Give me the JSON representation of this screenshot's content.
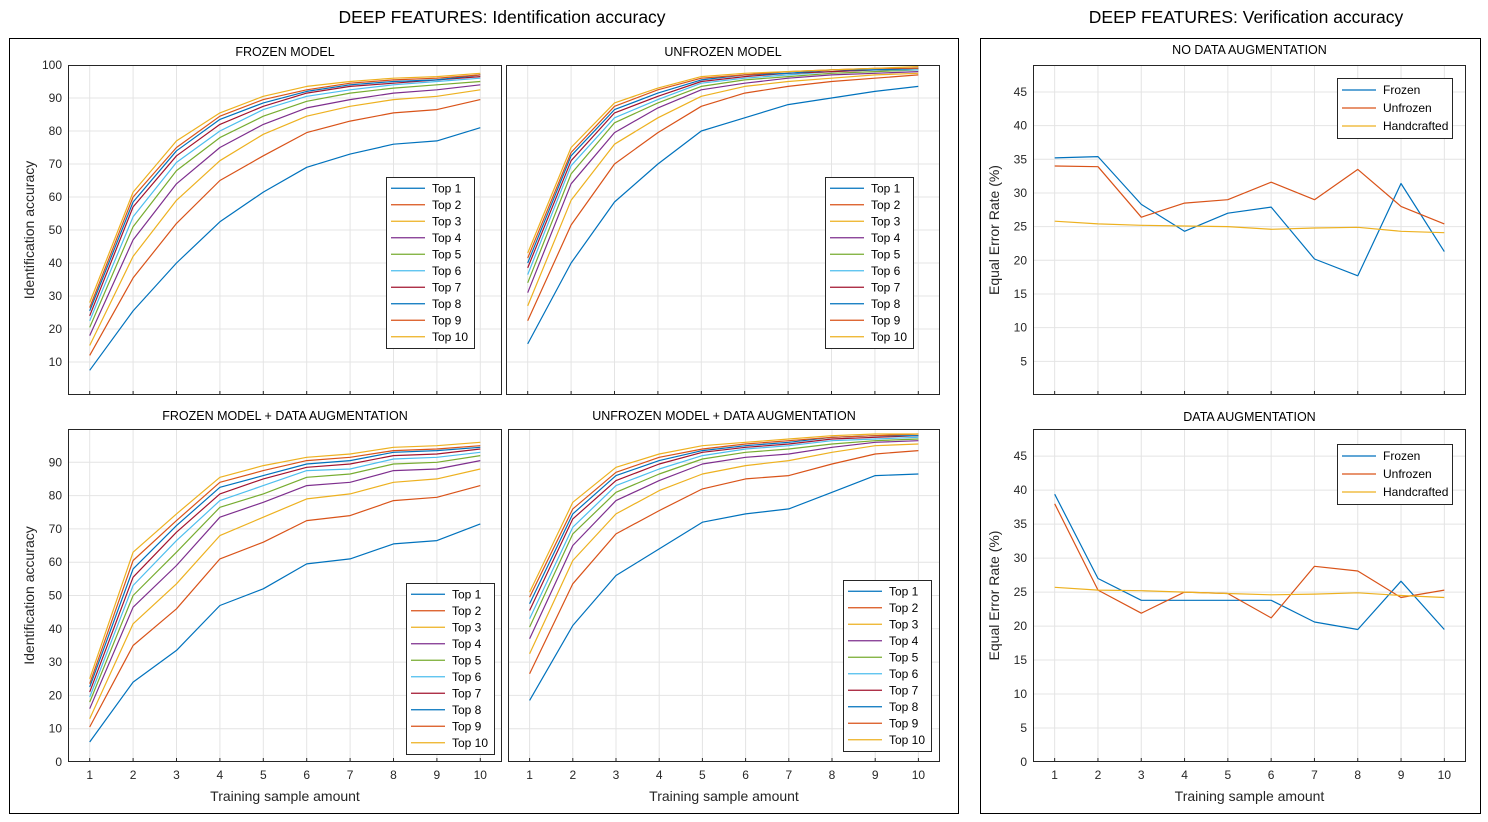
{
  "page": {
    "left_title": "DEEP FEATURES: Identification accuracy",
    "right_title": "DEEP FEATURES: Verification accuracy"
  },
  "colors": {
    "series": [
      "#0072BD",
      "#D95319",
      "#EDB120",
      "#7E2F8E",
      "#77AC30",
      "#4DBEEE",
      "#A2142F",
      "#0072BD",
      "#D95319",
      "#EDB120"
    ]
  },
  "chart_data": [
    {
      "id": "frozen",
      "type": "line",
      "title": "FROZEN MODEL",
      "xlabel": "",
      "ylabel": "Identification accuracy",
      "x": [
        1,
        2,
        3,
        4,
        5,
        6,
        7,
        8,
        9,
        10
      ],
      "ylim": [
        0,
        100
      ],
      "yticks": [
        10,
        20,
        30,
        40,
        50,
        60,
        70,
        80,
        90,
        100
      ],
      "xticks": [],
      "legend": "center-right",
      "series": [
        {
          "name": "Top 1",
          "values": [
            7.5,
            25.5,
            40,
            52.5,
            61.5,
            69,
            73,
            76,
            77,
            81
          ]
        },
        {
          "name": "Top 2",
          "values": [
            12,
            35.5,
            52,
            65,
            72.5,
            79.5,
            83,
            85.5,
            86.5,
            89.5
          ]
        },
        {
          "name": "Top 3",
          "values": [
            15,
            42,
            59,
            71,
            79,
            84.5,
            87.5,
            89.5,
            90.5,
            92.5
          ]
        },
        {
          "name": "Top 4",
          "values": [
            18,
            47,
            64,
            75,
            82,
            87,
            89.5,
            91.5,
            92.5,
            94
          ]
        },
        {
          "name": "Top 5",
          "values": [
            20.5,
            51,
            68,
            78,
            84.5,
            89,
            91.5,
            93,
            94,
            95
          ]
        },
        {
          "name": "Top 6",
          "values": [
            22.5,
            54,
            70.5,
            80,
            86.5,
            90.5,
            92.5,
            94,
            95,
            96
          ]
        },
        {
          "name": "Top 7",
          "values": [
            24,
            57,
            72.5,
            82,
            87.5,
            91.5,
            93.5,
            94.5,
            95.5,
            96.5
          ]
        },
        {
          "name": "Top 8",
          "values": [
            25.5,
            58.5,
            74,
            83.5,
            88.5,
            92,
            94,
            95,
            95.5,
            97
          ]
        },
        {
          "name": "Top 9",
          "values": [
            26.5,
            60,
            75,
            84.5,
            89.5,
            92.5,
            94.5,
            95.5,
            96,
            97
          ]
        },
        {
          "name": "Top 10",
          "values": [
            28,
            61.5,
            77,
            85.5,
            90.5,
            93.5,
            95,
            96,
            96.5,
            97.5
          ]
        }
      ]
    },
    {
      "id": "unfrozen",
      "type": "line",
      "title": "UNFROZEN MODEL",
      "xlabel": "",
      "ylabel": "",
      "x": [
        1,
        2,
        3,
        4,
        5,
        6,
        7,
        8,
        9,
        10
      ],
      "ylim": [
        0,
        100
      ],
      "yticks": [],
      "xticks": [],
      "legend": "center-right",
      "series": [
        {
          "name": "Top 1",
          "values": [
            15.5,
            40,
            58.5,
            70,
            80,
            84,
            88,
            90,
            92,
            93.5
          ]
        },
        {
          "name": "Top 2",
          "values": [
            22.5,
            51.5,
            70,
            79.5,
            87.5,
            91.5,
            93.5,
            95,
            96,
            97
          ]
        },
        {
          "name": "Top 3",
          "values": [
            27,
            59,
            76,
            84,
            90.5,
            93.5,
            95,
            96,
            97,
            97.5
          ]
        },
        {
          "name": "Top 4",
          "values": [
            31,
            64,
            79.5,
            87,
            92.5,
            94.5,
            96,
            97,
            97.5,
            98
          ]
        },
        {
          "name": "Top 5",
          "values": [
            34,
            67,
            82.5,
            88.5,
            93.5,
            95.5,
            96.5,
            97.5,
            98,
            98.5
          ]
        },
        {
          "name": "Top 6",
          "values": [
            36.5,
            69.5,
            84,
            89.5,
            94.5,
            96,
            97,
            98,
            98.5,
            98.5
          ]
        },
        {
          "name": "Top 7",
          "values": [
            38.5,
            71,
            85.5,
            90.5,
            95,
            96.5,
            97.5,
            98,
            98.5,
            99
          ]
        },
        {
          "name": "Top 8",
          "values": [
            40,
            72.5,
            86.5,
            91.5,
            95.5,
            97,
            97.5,
            98.5,
            98.5,
            99
          ]
        },
        {
          "name": "Top 9",
          "values": [
            41.5,
            73.5,
            87.5,
            92.5,
            96,
            97,
            98,
            98.5,
            99,
            99
          ]
        },
        {
          "name": "Top 10",
          "values": [
            43,
            75,
            88.5,
            93,
            96.5,
            97.5,
            98,
            98.5,
            99,
            99.5
          ]
        }
      ]
    },
    {
      "id": "frozen_aug",
      "type": "line",
      "title": "FROZEN MODEL + DATA AUGMENTATION",
      "xlabel": "Training sample amount",
      "ylabel": "Identification accuracy",
      "x": [
        1,
        2,
        3,
        4,
        5,
        6,
        7,
        8,
        9,
        10
      ],
      "ylim": [
        0,
        100
      ],
      "yticks": [
        0,
        10,
        20,
        30,
        40,
        50,
        60,
        70,
        80,
        90
      ],
      "xticks": [
        1,
        2,
        3,
        4,
        5,
        6,
        7,
        8,
        9,
        10
      ],
      "legend": "bottom-right",
      "series": [
        {
          "name": "Top 1",
          "values": [
            6,
            24,
            33.5,
            47,
            52,
            59.5,
            61,
            65.5,
            66.5,
            71.5
          ]
        },
        {
          "name": "Top 2",
          "values": [
            10.5,
            35,
            46,
            61,
            66,
            72.5,
            74,
            78.5,
            79.5,
            83
          ]
        },
        {
          "name": "Top 3",
          "values": [
            13,
            41.5,
            53.5,
            68,
            73.5,
            79,
            80.5,
            84,
            85,
            88
          ]
        },
        {
          "name": "Top 4",
          "values": [
            16,
            46.5,
            59,
            73.5,
            78,
            83,
            84,
            87.5,
            88,
            90.5
          ]
        },
        {
          "name": "Top 5",
          "values": [
            18,
            50,
            63,
            76.5,
            80.5,
            85.5,
            86.5,
            89.5,
            90,
            92
          ]
        },
        {
          "name": "Top 6",
          "values": [
            19.5,
            53,
            66.5,
            78.5,
            83,
            87.5,
            88,
            91,
            91.5,
            93
          ]
        },
        {
          "name": "Top 7",
          "values": [
            21,
            55.5,
            69,
            80.5,
            85,
            88.5,
            89.5,
            92,
            92.5,
            94
          ]
        },
        {
          "name": "Top 8",
          "values": [
            22.5,
            58,
            71,
            82.5,
            86,
            89.5,
            90.5,
            93,
            93.5,
            94.5
          ]
        },
        {
          "name": "Top 9",
          "values": [
            23.5,
            60.5,
            72.5,
            84,
            87.5,
            90.5,
            91.5,
            93.5,
            94,
            95
          ]
        },
        {
          "name": "Top 10",
          "values": [
            25,
            63,
            74.5,
            85.5,
            89,
            91.5,
            92.5,
            94.5,
            95,
            96
          ]
        }
      ]
    },
    {
      "id": "unfrozen_aug",
      "type": "line",
      "title": "UNFROZEN MODEL + DATA AUGMENTATION",
      "xlabel": "Training sample amount",
      "ylabel": "",
      "x": [
        1,
        2,
        3,
        4,
        5,
        6,
        7,
        8,
        9,
        10
      ],
      "ylim": [
        0,
        100
      ],
      "yticks": [],
      "xticks": [
        1,
        2,
        3,
        4,
        5,
        6,
        7,
        8,
        9,
        10
      ],
      "legend": "bottom-right",
      "series": [
        {
          "name": "Top 1",
          "values": [
            18.5,
            41,
            56,
            64,
            72,
            74.5,
            76,
            81,
            86,
            86.5
          ]
        },
        {
          "name": "Top 2",
          "values": [
            26.5,
            53.5,
            68.5,
            75.5,
            82,
            85,
            86,
            89.5,
            92.5,
            93.5
          ]
        },
        {
          "name": "Top 3",
          "values": [
            32.5,
            60.5,
            74.5,
            81.5,
            86.5,
            89,
            90.5,
            93,
            95,
            95.5
          ]
        },
        {
          "name": "Top 4",
          "values": [
            37,
            65,
            78.5,
            84.5,
            89.5,
            91.5,
            92.5,
            94.5,
            96,
            96.5
          ]
        },
        {
          "name": "Top 5",
          "values": [
            40.5,
            68.5,
            81,
            86.5,
            91,
            93,
            94,
            95.5,
            96.5,
            97
          ]
        },
        {
          "name": "Top 6",
          "values": [
            43,
            70.5,
            83,
            88,
            92,
            94,
            95,
            96.5,
            97,
            97.5
          ]
        },
        {
          "name": "Top 7",
          "values": [
            45.5,
            73,
            84.5,
            89.5,
            93,
            94.5,
            95.5,
            97,
            97.5,
            98
          ]
        },
        {
          "name": "Top 8",
          "values": [
            47.5,
            74.5,
            86,
            90.5,
            93.5,
            95,
            96,
            97.5,
            98,
            98
          ]
        },
        {
          "name": "Top 9",
          "values": [
            49.5,
            76,
            87,
            91.5,
            94,
            95.5,
            96.5,
            97.5,
            98,
            98.5
          ]
        },
        {
          "name": "Top 10",
          "values": [
            51,
            78,
            88.5,
            92.5,
            95,
            96,
            97,
            98,
            98.5,
            98.5
          ]
        }
      ]
    },
    {
      "id": "verif_noaug",
      "type": "line",
      "title": "NO DATA AUGMENTATION",
      "xlabel": "",
      "ylabel": "Equal Error Rate (%)",
      "x": [
        1,
        2,
        3,
        4,
        5,
        6,
        7,
        8,
        9,
        10
      ],
      "ylim": [
        0,
        49
      ],
      "yticks": [
        5,
        10,
        15,
        20,
        25,
        30,
        35,
        40,
        45
      ],
      "xticks": [],
      "legend": "top-right",
      "series": [
        {
          "name": "Frozen",
          "values": [
            35.2,
            35.4,
            28.3,
            24.3,
            27,
            27.9,
            20.2,
            17.7,
            31.4,
            21.3
          ]
        },
        {
          "name": "Unfrozen",
          "values": [
            34,
            33.9,
            26.4,
            28.5,
            29,
            31.6,
            29,
            33.5,
            28,
            25.4
          ]
        },
        {
          "name": "Handcrafted",
          "values": [
            25.8,
            25.4,
            25.2,
            25.1,
            25,
            24.6,
            24.8,
            24.9,
            24.3,
            24.1
          ]
        }
      ]
    },
    {
      "id": "verif_aug",
      "type": "line",
      "title": "DATA AUGMENTATION",
      "xlabel": "Training sample amount",
      "ylabel": "Equal Error Rate (%)",
      "x": [
        1,
        2,
        3,
        4,
        5,
        6,
        7,
        8,
        9,
        10
      ],
      "ylim": [
        0,
        49
      ],
      "yticks": [
        0,
        5,
        10,
        15,
        20,
        25,
        30,
        35,
        40,
        45
      ],
      "xticks": [
        1,
        2,
        3,
        4,
        5,
        6,
        7,
        8,
        9,
        10
      ],
      "legend": "top-right",
      "series": [
        {
          "name": "Frozen",
          "values": [
            39.4,
            27,
            23.8,
            23.8,
            23.8,
            23.8,
            20.6,
            19.5,
            26.6,
            19.5
          ]
        },
        {
          "name": "Unfrozen",
          "values": [
            38,
            25.3,
            21.9,
            25,
            24.8,
            21.2,
            28.8,
            28.1,
            24.2,
            25.3
          ]
        },
        {
          "name": "Handcrafted",
          "values": [
            25.7,
            25.3,
            25.2,
            25,
            24.8,
            24.6,
            24.7,
            24.9,
            24.5,
            24.2
          ]
        }
      ]
    }
  ]
}
